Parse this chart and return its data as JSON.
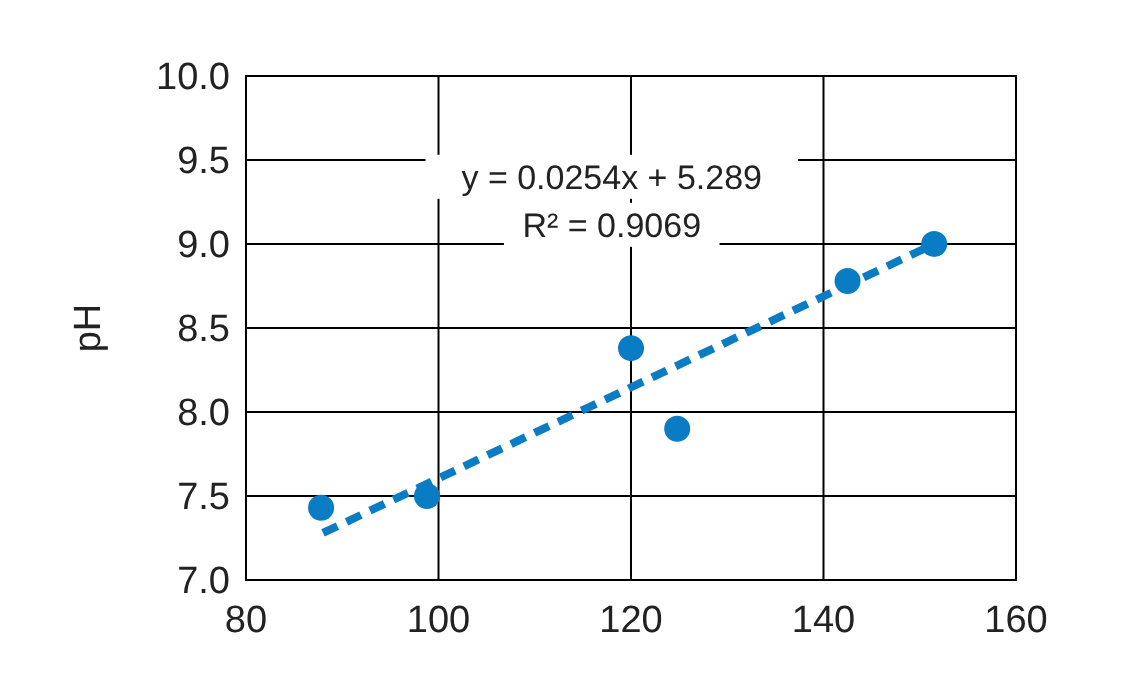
{
  "chart_data": {
    "type": "scatter",
    "ylabel": "pH",
    "xlim": [
      80,
      160
    ],
    "xticks": [
      80,
      100,
      120,
      140,
      160
    ],
    "ylim": [
      7,
      10
    ],
    "yticks": [
      {
        "value": 7,
        "label": "7.0"
      },
      {
        "value": 7.5,
        "label": "7.5"
      },
      {
        "value": 8,
        "label": "8.0"
      },
      {
        "value": 8.5,
        "label": "8.5"
      },
      {
        "value": 9,
        "label": "9.0"
      },
      {
        "value": 9.5,
        "label": "9.5"
      },
      {
        "value": 10,
        "label": "10.0"
      }
    ],
    "grid": true,
    "annotations": [
      "y = 0.0254x + 5.289",
      "R² = 0.9069"
    ],
    "series": [
      {
        "color": "#0a7cc4",
        "marker": "circle",
        "x": [
          87.8,
          98.8,
          120,
          124.8,
          142.5,
          151.5
        ],
        "values": [
          7.43,
          7.5,
          8.38,
          7.9,
          8.78,
          9.0
        ]
      },
      {
        "type": "line",
        "color": "#0a7cc4",
        "line_style": "dashed",
        "marker": "none",
        "x": [
          88,
          151.5
        ],
        "values": [
          7.28,
          9.0
        ]
      }
    ]
  }
}
